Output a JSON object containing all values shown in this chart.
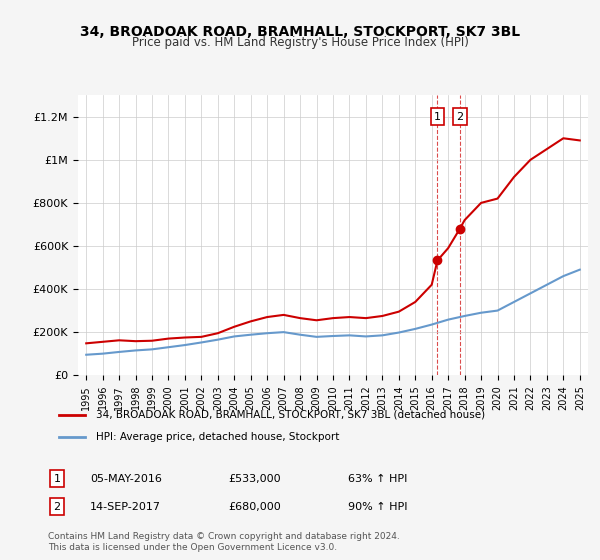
{
  "title": "34, BROADOAK ROAD, BRAMHALL, STOCKPORT, SK7 3BL",
  "subtitle": "Price paid vs. HM Land Registry's House Price Index (HPI)",
  "legend_line1": "34, BROADOAK ROAD, BRAMHALL, STOCKPORT, SK7 3BL (detached house)",
  "legend_line2": "HPI: Average price, detached house, Stockport",
  "footer": "Contains HM Land Registry data © Crown copyright and database right 2024.\nThis data is licensed under the Open Government Licence v3.0.",
  "point1_label": "1",
  "point1_date": "05-MAY-2016",
  "point1_price": "£533,000",
  "point1_hpi": "63% ↑ HPI",
  "point1_x": 2016.35,
  "point1_y": 533000,
  "point2_label": "2",
  "point2_date": "14-SEP-2017",
  "point2_price": "£680,000",
  "point2_hpi": "90% ↑ HPI",
  "point2_x": 2017.71,
  "point2_y": 680000,
  "red_color": "#cc0000",
  "blue_color": "#6699cc",
  "background_color": "#f5f5f5",
  "plot_bg_color": "#ffffff",
  "ylim": [
    0,
    1300000
  ],
  "xlim": [
    1994.5,
    2025.5
  ],
  "red_x": [
    1995,
    1996,
    1997,
    1998,
    1999,
    2000,
    2001,
    2002,
    2003,
    2004,
    2005,
    2006,
    2007,
    2008,
    2009,
    2010,
    2011,
    2012,
    2013,
    2014,
    2015,
    2016,
    2016.35,
    2017,
    2017.71,
    2018,
    2019,
    2020,
    2021,
    2022,
    2023,
    2024,
    2025
  ],
  "red_y": [
    148000,
    155000,
    162000,
    158000,
    160000,
    170000,
    175000,
    178000,
    195000,
    225000,
    250000,
    270000,
    280000,
    265000,
    255000,
    265000,
    270000,
    265000,
    275000,
    295000,
    340000,
    420000,
    533000,
    590000,
    680000,
    720000,
    800000,
    820000,
    920000,
    1000000,
    1050000,
    1100000,
    1090000
  ],
  "blue_x": [
    1995,
    1996,
    1997,
    1998,
    1999,
    2000,
    2001,
    2002,
    2003,
    2004,
    2005,
    2006,
    2007,
    2008,
    2009,
    2010,
    2011,
    2012,
    2013,
    2014,
    2015,
    2016,
    2017,
    2018,
    2019,
    2020,
    2021,
    2022,
    2023,
    2024,
    2025
  ],
  "blue_y": [
    95000,
    100000,
    108000,
    115000,
    120000,
    130000,
    140000,
    152000,
    165000,
    180000,
    188000,
    195000,
    200000,
    188000,
    178000,
    182000,
    185000,
    180000,
    185000,
    198000,
    215000,
    235000,
    258000,
    275000,
    290000,
    300000,
    340000,
    380000,
    420000,
    460000,
    490000
  ],
  "xticks": [
    1995,
    1996,
    1997,
    1998,
    1999,
    2000,
    2001,
    2002,
    2003,
    2004,
    2005,
    2006,
    2007,
    2008,
    2009,
    2010,
    2011,
    2012,
    2013,
    2014,
    2015,
    2016,
    2017,
    2018,
    2019,
    2020,
    2021,
    2022,
    2023,
    2024,
    2025
  ],
  "yticks": [
    0,
    200000,
    400000,
    600000,
    800000,
    1000000,
    1200000
  ]
}
